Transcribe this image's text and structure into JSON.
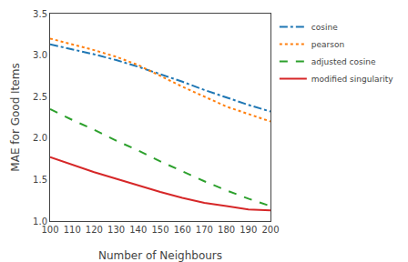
{
  "chart_data": {
    "type": "line",
    "xlabel": "Number of Neighbours",
    "ylabel": "MAE for Good Items",
    "xlim": [
      100,
      200
    ],
    "ylim": [
      1,
      3.5
    ],
    "xticks": [
      100,
      110,
      120,
      130,
      140,
      150,
      160,
      170,
      180,
      190,
      200
    ],
    "yticks": [
      {
        "value": 1,
        "label": "1.0"
      },
      1.5,
      {
        "value": 2,
        "label": "2.0"
      },
      2.5,
      {
        "value": 3,
        "label": "3.0"
      },
      3.5
    ],
    "x": [
      100,
      110,
      120,
      130,
      140,
      150,
      160,
      170,
      180,
      190,
      200
    ],
    "series": [
      {
        "name": "cosine",
        "line_style": "dashdot",
        "values": [
          3.13,
          3.07,
          3.01,
          2.94,
          2.86,
          2.77,
          2.68,
          2.58,
          2.49,
          2.4,
          2.32
        ]
      },
      {
        "name": "pearson",
        "line_style": "dotted",
        "values": [
          3.2,
          3.13,
          3.06,
          2.98,
          2.88,
          2.75,
          2.62,
          2.5,
          2.38,
          2.29,
          2.2
        ]
      },
      {
        "name": "adjusted cosine",
        "line_style": "dashed",
        "values": [
          2.35,
          2.22,
          2.1,
          1.97,
          1.85,
          1.72,
          1.6,
          1.48,
          1.37,
          1.27,
          1.18
        ]
      },
      {
        "name": "modified singularity",
        "line_style": "solid",
        "values": [
          1.77,
          1.68,
          1.59,
          1.51,
          1.43,
          1.35,
          1.28,
          1.22,
          1.18,
          1.14,
          1.13
        ]
      }
    ],
    "legend": "upper right",
    "grid": false
  }
}
